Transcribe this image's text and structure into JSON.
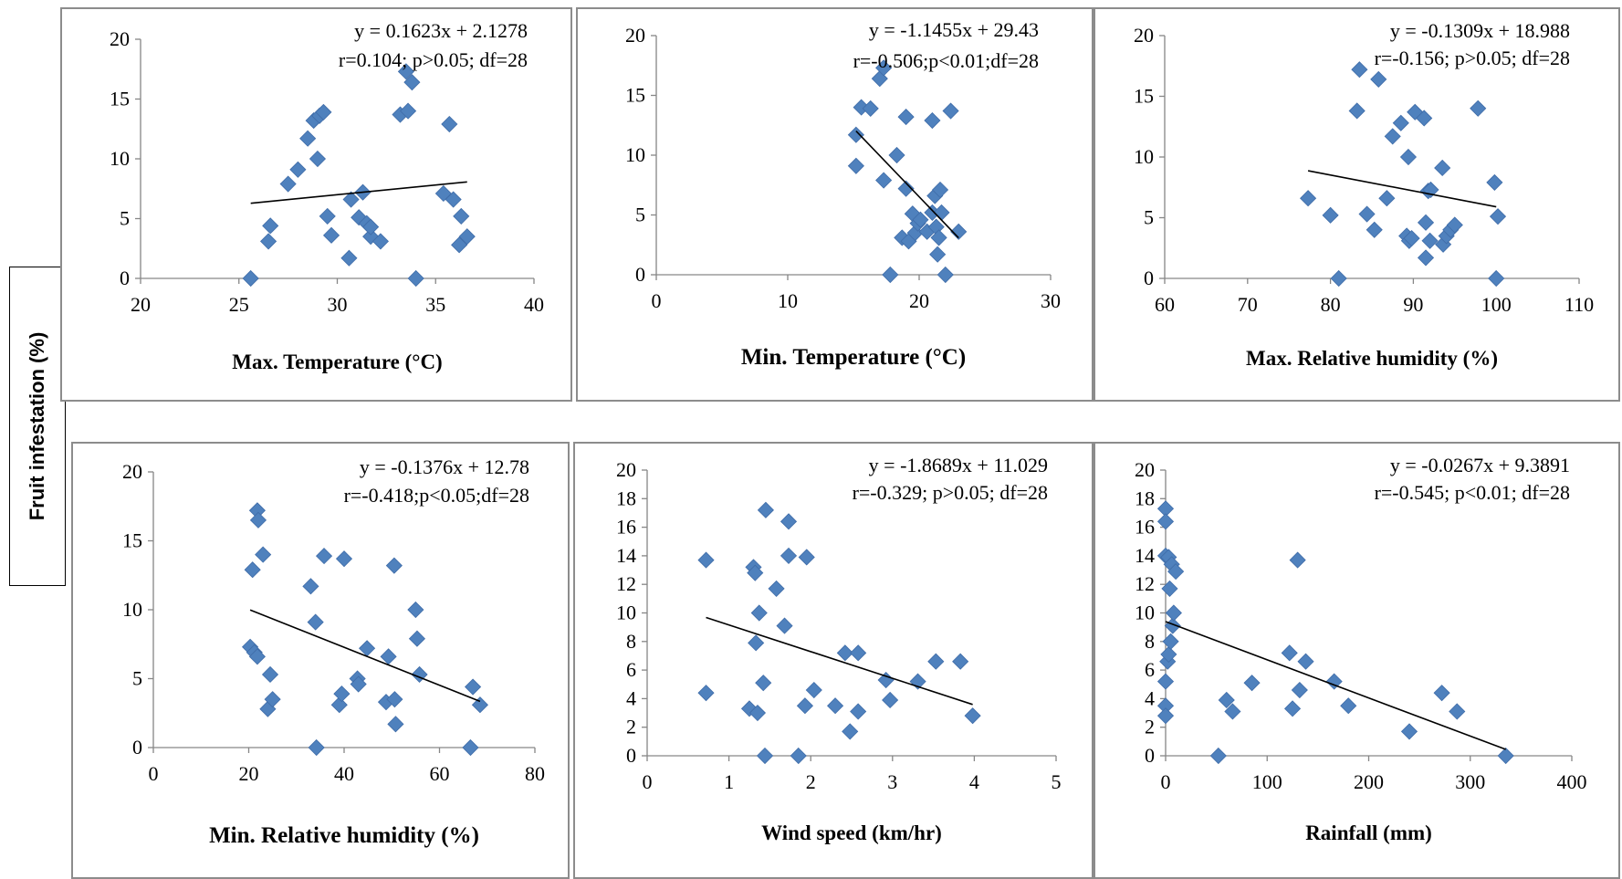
{
  "y_axis_title": "Fruit infestation (%)",
  "colors": {
    "marker": "#4f81bd",
    "marker_edge": "#3f6ca8",
    "trendline": "#000000",
    "frame": "#8c8c8c"
  },
  "chart_data": [
    {
      "type": "scatter",
      "xlabel": "Max. Temperature (°C)",
      "xlim": [
        20,
        40
      ],
      "xticks": [
        20,
        25,
        30,
        35,
        40
      ],
      "ylim": [
        0,
        20
      ],
      "yticks": [
        0,
        5,
        10,
        15,
        20
      ],
      "equation": "y = 0.1623x + 2.1278",
      "stats": "r=0.104; p>0.05; df=28",
      "trend": {
        "slope": 0.1623,
        "intercept": 2.1278,
        "x_range": [
          25.6,
          36.6
        ]
      },
      "points": [
        [
          25.6,
          0
        ],
        [
          26.5,
          3.1
        ],
        [
          26.6,
          4.4
        ],
        [
          27.5,
          7.9
        ],
        [
          28.0,
          9.1
        ],
        [
          28.5,
          11.7
        ],
        [
          28.8,
          13.2
        ],
        [
          29.0,
          10.0
        ],
        [
          29.1,
          13.6
        ],
        [
          29.3,
          13.9
        ],
        [
          29.5,
          5.2
        ],
        [
          29.7,
          3.6
        ],
        [
          30.6,
          1.7
        ],
        [
          30.7,
          6.6
        ],
        [
          31.1,
          5.1
        ],
        [
          31.3,
          7.2
        ],
        [
          31.5,
          4.6
        ],
        [
          31.7,
          3.5
        ],
        [
          31.7,
          4.3
        ],
        [
          32.2,
          3.1
        ],
        [
          33.2,
          13.7
        ],
        [
          33.5,
          17.3
        ],
        [
          33.6,
          14.0
        ],
        [
          33.8,
          16.4
        ],
        [
          34.0,
          0
        ],
        [
          35.4,
          7.1
        ],
        [
          35.7,
          12.9
        ],
        [
          35.9,
          6.6
        ],
        [
          36.2,
          2.8
        ],
        [
          36.3,
          5.2
        ],
        [
          36.6,
          3.5
        ]
      ]
    },
    {
      "type": "scatter",
      "xlabel": "Min.  Temperature  (°C)",
      "xlim": [
        0,
        30
      ],
      "xticks": [
        0,
        10,
        20,
        30
      ],
      "ylim": [
        0,
        20
      ],
      "yticks": [
        0,
        5,
        10,
        15,
        20
      ],
      "equation": "y = -1.1455x + 29.43",
      "stats": "r=-0.506;p<0.01;df=28",
      "trend": {
        "slope": -1.1455,
        "intercept": 29.43,
        "x_range": [
          15.2,
          23.0
        ]
      },
      "points": [
        [
          15.2,
          9.1
        ],
        [
          15.2,
          11.7
        ],
        [
          15.6,
          14.0
        ],
        [
          16.3,
          13.9
        ],
        [
          17.0,
          16.4
        ],
        [
          17.3,
          17.3
        ],
        [
          17.3,
          7.9
        ],
        [
          17.8,
          0
        ],
        [
          18.3,
          10.0
        ],
        [
          18.7,
          3.1
        ],
        [
          19.0,
          13.2
        ],
        [
          19.0,
          7.2
        ],
        [
          19.2,
          2.8
        ],
        [
          19.5,
          5.1
        ],
        [
          19.7,
          3.5
        ],
        [
          19.9,
          4.3
        ],
        [
          20.1,
          4.6
        ],
        [
          20.6,
          3.6
        ],
        [
          21.0,
          12.9
        ],
        [
          21.0,
          5.2
        ],
        [
          21.2,
          6.6
        ],
        [
          21.3,
          4.0
        ],
        [
          21.4,
          1.7
        ],
        [
          21.5,
          3.1
        ],
        [
          21.6,
          7.1
        ],
        [
          21.7,
          5.2
        ],
        [
          22.0,
          0
        ],
        [
          22.4,
          13.7
        ],
        [
          23.0,
          3.6
        ]
      ]
    },
    {
      "type": "scatter",
      "xlabel": "Max. Relative humidity (%)",
      "xlim": [
        60,
        110
      ],
      "xticks": [
        60,
        70,
        80,
        90,
        100,
        110
      ],
      "ylim": [
        0,
        20
      ],
      "yticks": [
        0,
        5,
        10,
        15,
        20
      ],
      "equation": "y = -0.1309x + 18.988",
      "stats": "r=-0.156; p>0.05; df=28",
      "trend": {
        "slope": -0.1309,
        "intercept": 18.988,
        "x_range": [
          77.3,
          100.0
        ]
      },
      "points": [
        [
          77.3,
          6.6
        ],
        [
          80.0,
          5.2
        ],
        [
          81.0,
          0
        ],
        [
          83.2,
          13.8
        ],
        [
          83.5,
          17.2
        ],
        [
          84.4,
          5.3
        ],
        [
          85.3,
          4.0
        ],
        [
          85.8,
          16.4
        ],
        [
          86.8,
          6.6
        ],
        [
          87.5,
          11.7
        ],
        [
          88.5,
          12.8
        ],
        [
          89.2,
          3.5
        ],
        [
          89.4,
          10.0
        ],
        [
          89.5,
          3.1
        ],
        [
          89.8,
          3.3
        ],
        [
          90.2,
          13.7
        ],
        [
          91.3,
          13.2
        ],
        [
          91.5,
          4.6
        ],
        [
          91.5,
          1.7
        ],
        [
          91.8,
          7.2
        ],
        [
          92.1,
          7.3
        ],
        [
          92.0,
          3.1
        ],
        [
          93.5,
          9.1
        ],
        [
          93.6,
          2.8
        ],
        [
          94.0,
          3.5
        ],
        [
          94.5,
          4.0
        ],
        [
          95.0,
          4.4
        ],
        [
          97.8,
          14.0
        ],
        [
          99.8,
          7.9
        ],
        [
          100.2,
          5.1
        ],
        [
          100.0,
          0
        ]
      ]
    },
    {
      "type": "scatter",
      "xlabel": "Min. Relative humidity (%)",
      "xlim": [
        0,
        80
      ],
      "xticks": [
        0,
        20,
        40,
        60,
        80
      ],
      "ylim": [
        0,
        20
      ],
      "yticks": [
        0,
        5,
        10,
        15,
        20
      ],
      "equation": "y = -0.1376x + 12.78",
      "stats": "r=-0.418;p<0.05;df=28",
      "trend": {
        "slope": -0.1376,
        "intercept": 12.78,
        "x_range": [
          20.3,
          68.5
        ]
      },
      "points": [
        [
          20.3,
          7.3
        ],
        [
          20.8,
          12.9
        ],
        [
          21.2,
          6.9
        ],
        [
          21.8,
          6.6
        ],
        [
          21.8,
          17.2
        ],
        [
          22.0,
          16.5
        ],
        [
          23.0,
          14.0
        ],
        [
          24.0,
          2.8
        ],
        [
          24.5,
          5.3
        ],
        [
          25.0,
          3.5
        ],
        [
          33.0,
          11.7
        ],
        [
          34.0,
          9.1
        ],
        [
          34.2,
          0
        ],
        [
          35.8,
          13.9
        ],
        [
          39.0,
          3.1
        ],
        [
          39.5,
          3.9
        ],
        [
          40.0,
          13.7
        ],
        [
          42.8,
          5.0
        ],
        [
          43.0,
          4.6
        ],
        [
          44.8,
          7.2
        ],
        [
          48.8,
          3.3
        ],
        [
          49.3,
          6.6
        ],
        [
          50.5,
          13.2
        ],
        [
          50.6,
          3.5
        ],
        [
          50.8,
          1.7
        ],
        [
          55.0,
          10.0
        ],
        [
          55.3,
          7.9
        ],
        [
          55.8,
          5.3
        ],
        [
          66.5,
          0
        ],
        [
          67.0,
          4.4
        ],
        [
          68.5,
          3.1
        ]
      ]
    },
    {
      "type": "scatter",
      "xlabel": "Wind speed (km/hr)",
      "xlim": [
        0,
        5
      ],
      "xticks": [
        0,
        1,
        2,
        3,
        4,
        5
      ],
      "ylim": [
        0,
        20
      ],
      "yticks": [
        0,
        2,
        4,
        6,
        8,
        10,
        12,
        14,
        16,
        18,
        20
      ],
      "equation": "y = -1.8689x + 11.029",
      "stats": "r=-0.329; p>0.05; df=28",
      "trend": {
        "slope": -1.8689,
        "intercept": 11.029,
        "x_range": [
          0.72,
          3.98
        ]
      },
      "points": [
        [
          0.72,
          13.7
        ],
        [
          0.72,
          4.4
        ],
        [
          1.25,
          3.3
        ],
        [
          1.3,
          13.2
        ],
        [
          1.32,
          12.8
        ],
        [
          1.33,
          7.9
        ],
        [
          1.35,
          3.0
        ],
        [
          1.37,
          10.0
        ],
        [
          1.42,
          5.1
        ],
        [
          1.44,
          0
        ],
        [
          1.45,
          17.2
        ],
        [
          1.58,
          11.7
        ],
        [
          1.68,
          9.1
        ],
        [
          1.73,
          14.0
        ],
        [
          1.73,
          16.4
        ],
        [
          1.85,
          0
        ],
        [
          1.93,
          3.5
        ],
        [
          1.95,
          13.9
        ],
        [
          2.04,
          4.6
        ],
        [
          2.3,
          3.5
        ],
        [
          2.42,
          7.2
        ],
        [
          2.48,
          1.7
        ],
        [
          2.58,
          7.2
        ],
        [
          2.58,
          3.1
        ],
        [
          2.92,
          5.3
        ],
        [
          2.97,
          3.9
        ],
        [
          3.31,
          5.2
        ],
        [
          3.53,
          6.6
        ],
        [
          3.83,
          6.6
        ],
        [
          3.98,
          2.8
        ]
      ]
    },
    {
      "type": "scatter",
      "xlabel": "Rainfall (mm)",
      "xlim": [
        0,
        400
      ],
      "xticks": [
        0,
        100,
        200,
        300,
        400
      ],
      "ylim": [
        0,
        20
      ],
      "yticks": [
        0,
        2,
        4,
        6,
        8,
        10,
        12,
        14,
        16,
        18,
        20
      ],
      "equation": "y = -0.0267x + 9.3891",
      "stats": "r=-0.545; p<0.01; df=28",
      "trend": {
        "slope": -0.0267,
        "intercept": 9.3891,
        "x_range": [
          0,
          335
        ]
      },
      "points": [
        [
          0,
          17.3
        ],
        [
          0,
          16.4
        ],
        [
          0,
          14.0
        ],
        [
          0,
          5.2
        ],
        [
          0,
          3.5
        ],
        [
          0,
          2.8
        ],
        [
          2,
          6.6
        ],
        [
          3,
          7.1
        ],
        [
          3,
          13.9
        ],
        [
          4,
          11.7
        ],
        [
          5,
          8.0
        ],
        [
          6,
          13.4
        ],
        [
          7,
          9.1
        ],
        [
          8,
          10.0
        ],
        [
          10,
          12.9
        ],
        [
          52,
          0
        ],
        [
          60,
          3.9
        ],
        [
          66,
          3.1
        ],
        [
          85,
          5.1
        ],
        [
          122,
          7.2
        ],
        [
          125,
          3.3
        ],
        [
          130,
          13.7
        ],
        [
          132,
          4.6
        ],
        [
          138,
          6.6
        ],
        [
          166,
          5.2
        ],
        [
          180,
          3.5
        ],
        [
          240,
          1.7
        ],
        [
          272,
          4.4
        ],
        [
          287,
          3.1
        ],
        [
          335,
          0
        ]
      ]
    }
  ]
}
